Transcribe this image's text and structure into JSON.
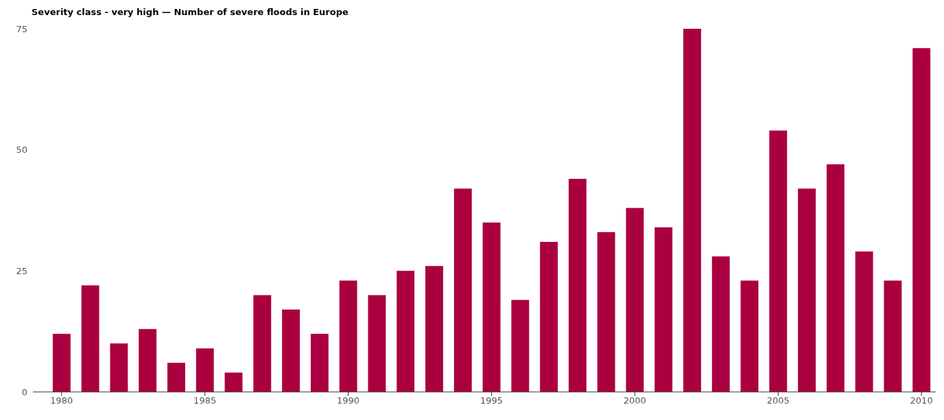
{
  "chart_data": {
    "type": "bar",
    "title": "Severity class - very high — Number of severe floods in Europe",
    "x": [
      1980,
      1981,
      1982,
      1983,
      1984,
      1985,
      1986,
      1987,
      1988,
      1989,
      1990,
      1991,
      1992,
      1993,
      1994,
      1995,
      1996,
      1997,
      1998,
      1999,
      2000,
      2001,
      2002,
      2003,
      2004,
      2005,
      2006,
      2007,
      2008,
      2009,
      2010
    ],
    "values": [
      12,
      22,
      10,
      13,
      6,
      9,
      4,
      20,
      17,
      12,
      23,
      20,
      25,
      26,
      42,
      35,
      19,
      31,
      44,
      33,
      38,
      34,
      75,
      28,
      23,
      54,
      42,
      47,
      29,
      23,
      71
    ],
    "color": "#ab003f",
    "xlim": [
      1979,
      2010.5
    ],
    "xticks": [
      1980,
      1985,
      1990,
      1995,
      2000,
      2005,
      2010
    ],
    "ylim": [
      0,
      75
    ],
    "yticks": [
      0,
      25,
      50,
      75
    ]
  }
}
